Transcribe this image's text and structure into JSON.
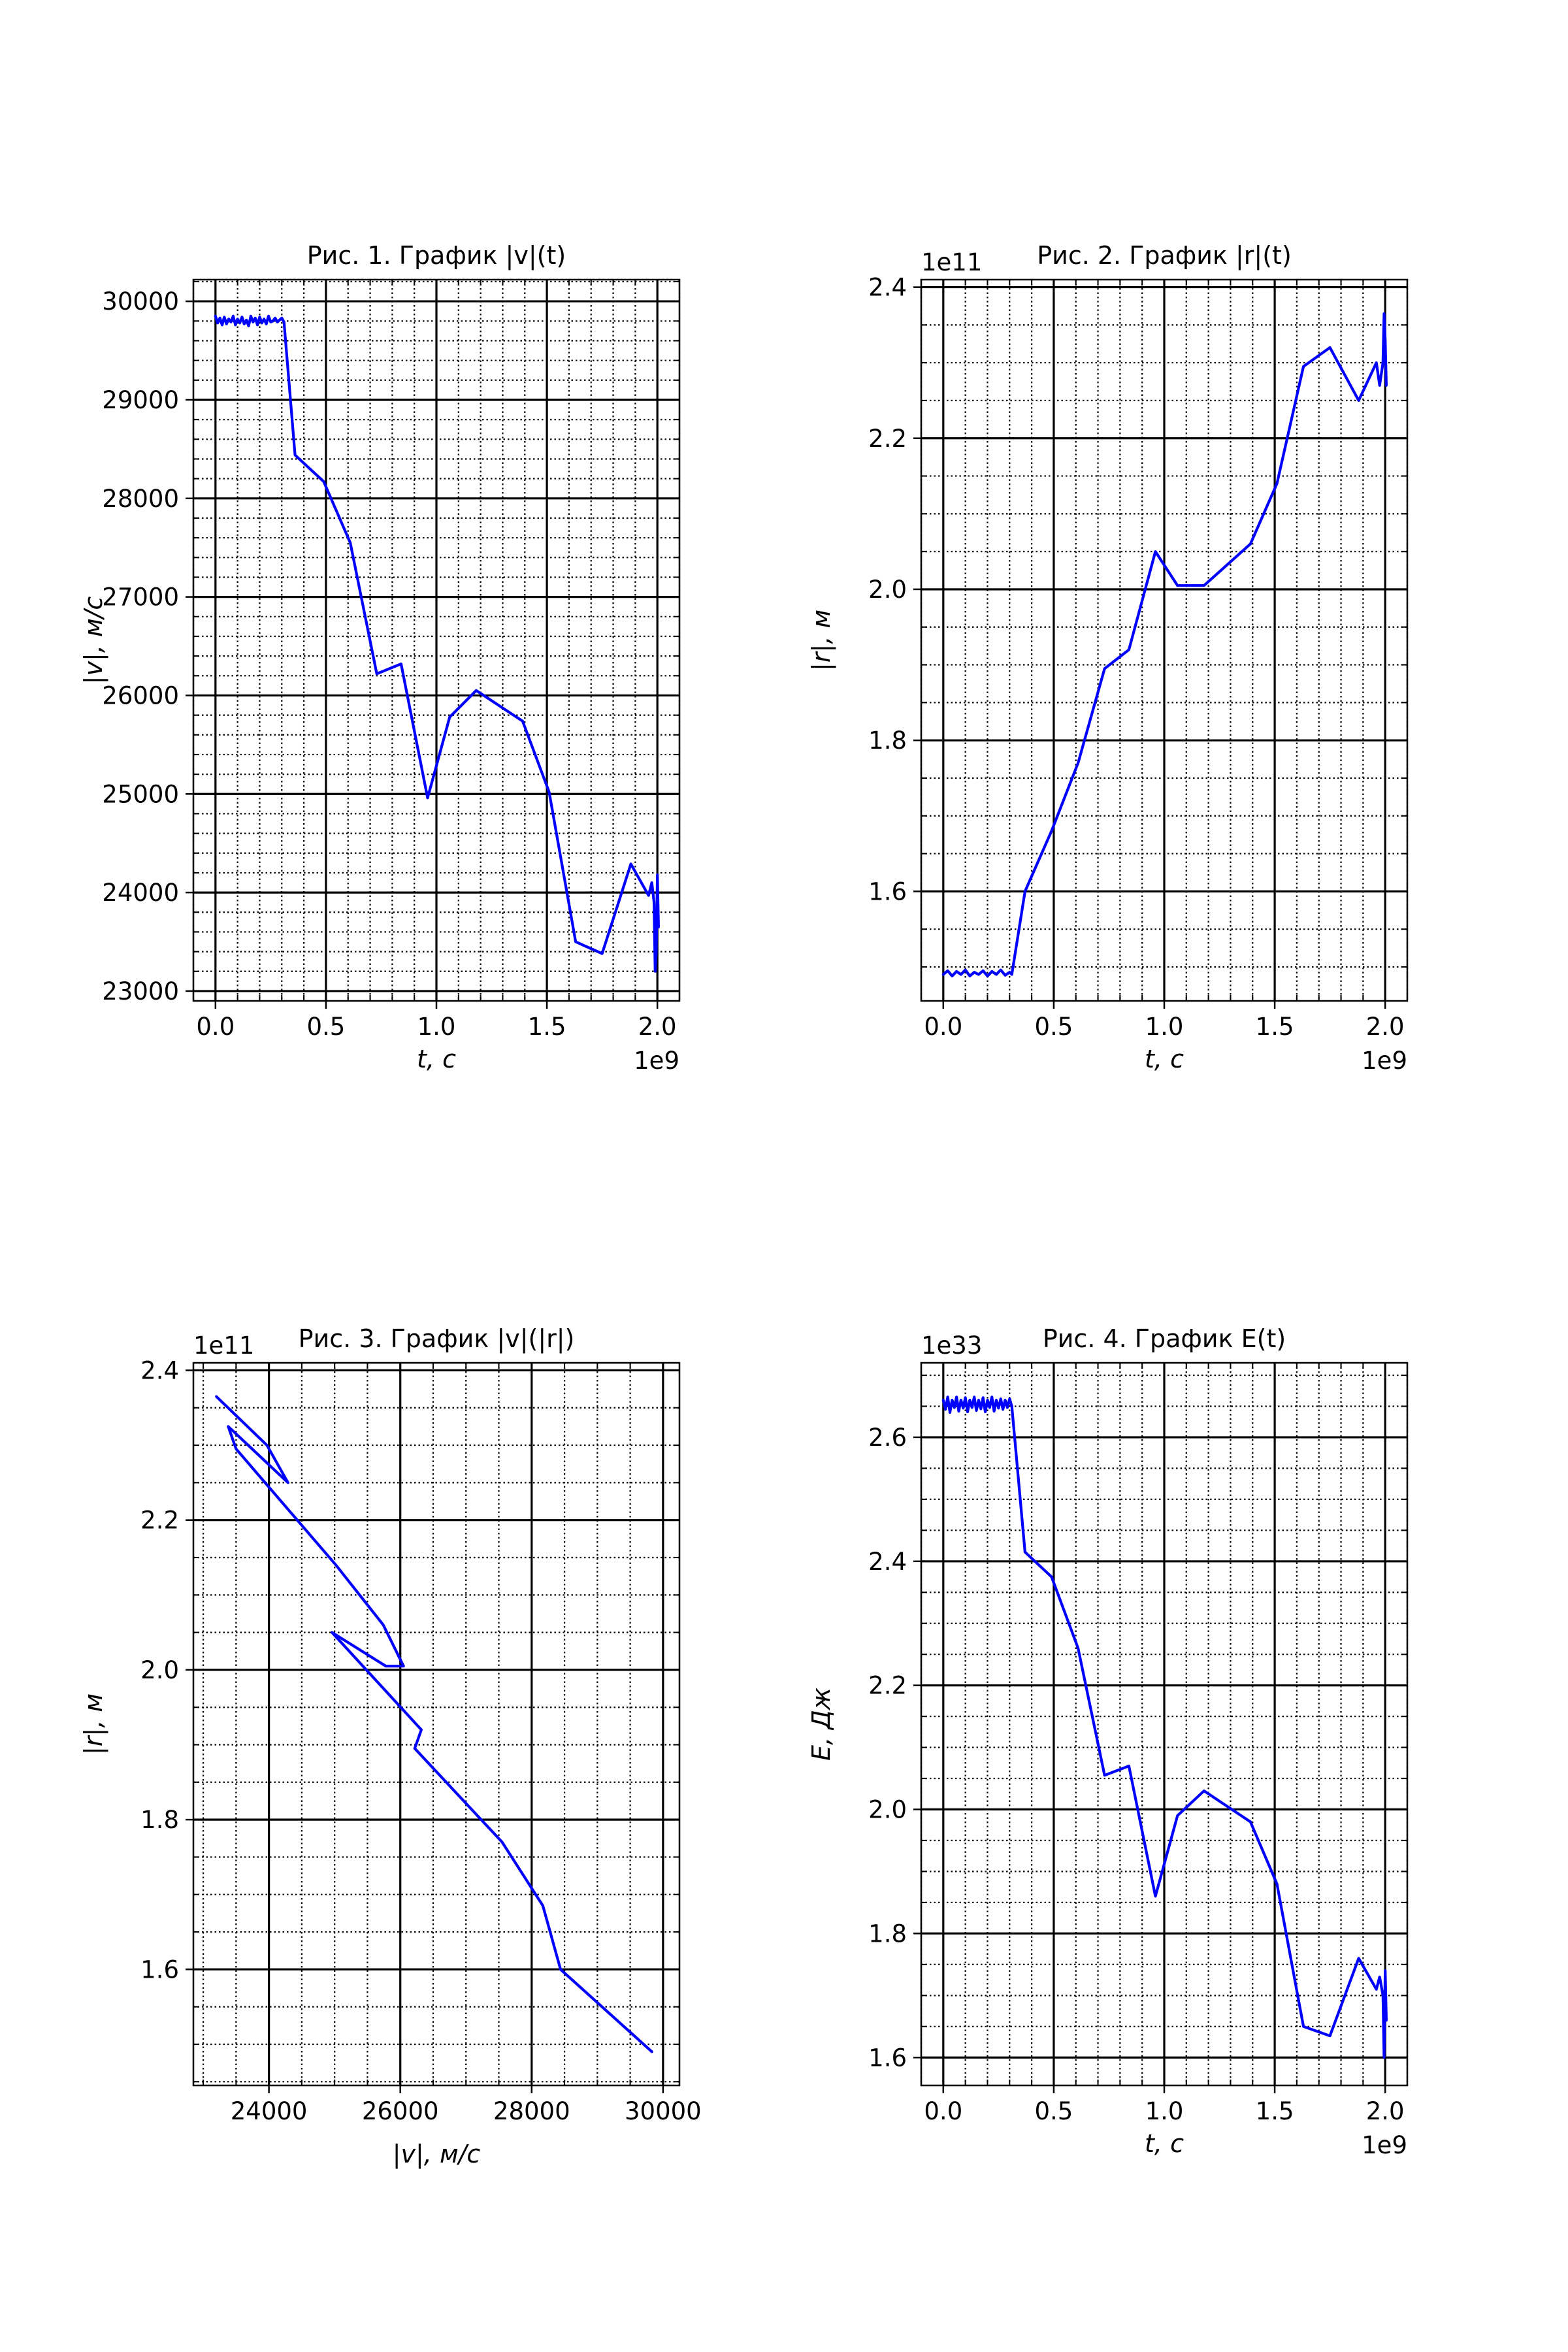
{
  "line_color": "#0000ff",
  "grid_color": "#000000",
  "chart_data": [
    {
      "type": "line",
      "title": "Рис. 1. График |v|(t)",
      "xlabel": "t, c",
      "ylabel": "|v|, м/c",
      "offset_label": "1e9",
      "x_offset": "1e9",
      "y_offset": "",
      "xlim": [
        -0.1,
        2.1
      ],
      "ylim": [
        22900,
        30220
      ],
      "x_ticks": [
        0.0,
        0.5,
        1.0,
        1.5,
        2.0
      ],
      "x_tick_labels": [
        "0.0",
        "0.5",
        "1.0",
        "1.5",
        "2.0"
      ],
      "y_ticks": [
        23000,
        24000,
        25000,
        26000,
        27000,
        28000,
        29000,
        30000
      ],
      "y_tick_labels": [
        "23000",
        "24000",
        "25000",
        "26000",
        "27000",
        "28000",
        "29000",
        "30000"
      ],
      "x_minor": 0.1,
      "y_minor": 200,
      "grid": true,
      "series": [
        {
          "x": [
            0.0,
            0.01,
            0.02,
            0.03,
            0.04,
            0.05,
            0.06,
            0.07,
            0.08,
            0.09,
            0.1,
            0.11,
            0.12,
            0.13,
            0.14,
            0.15,
            0.16,
            0.17,
            0.18,
            0.19,
            0.2,
            0.21,
            0.22,
            0.23,
            0.24,
            0.25,
            0.26,
            0.27,
            0.28,
            0.29,
            0.3,
            0.31,
            0.36,
            0.49,
            0.61,
            0.73,
            0.84,
            0.96,
            1.06,
            1.18,
            1.39,
            1.51,
            1.63,
            1.75,
            1.88,
            1.96,
            1.975,
            1.985,
            1.99,
            1.995,
            2.0,
            2.005
          ],
          "y": [
            29850,
            29780,
            29830,
            29760,
            29840,
            29770,
            29820,
            29790,
            29850,
            29760,
            29820,
            29780,
            29840,
            29770,
            29810,
            29750,
            29850,
            29790,
            29830,
            29760,
            29840,
            29780,
            29820,
            29770,
            29850,
            29790,
            29800,
            29830,
            29790,
            29810,
            29830,
            29790,
            28440,
            28170,
            27550,
            26220,
            26320,
            24960,
            25780,
            26050,
            25740,
            25020,
            23500,
            23380,
            24290,
            23970,
            24100,
            23900,
            23200,
            23400,
            24180,
            23650
          ]
        }
      ]
    },
    {
      "type": "line",
      "title": "Рис. 2. График |r|(t)",
      "xlabel": "t, c",
      "ylabel": "|r|, м",
      "offset_label": "1e11",
      "x_offset": "1e9",
      "y_offset": "1e11",
      "xlim": [
        -0.1,
        2.1
      ],
      "ylim": [
        1.455,
        2.41
      ],
      "x_ticks": [
        0.0,
        0.5,
        1.0,
        1.5,
        2.0
      ],
      "x_tick_labels": [
        "0.0",
        "0.5",
        "1.0",
        "1.5",
        "2.0"
      ],
      "y_ticks": [
        1.6,
        1.8,
        2.0,
        2.2,
        2.4
      ],
      "y_tick_labels": [
        "1.6",
        "1.8",
        "2.0",
        "2.2",
        "2.4"
      ],
      "x_minor": 0.1,
      "y_minor": 0.05,
      "grid": true,
      "series": [
        {
          "x": [
            0.0,
            0.02,
            0.04,
            0.06,
            0.08,
            0.1,
            0.12,
            0.14,
            0.16,
            0.18,
            0.2,
            0.22,
            0.24,
            0.26,
            0.28,
            0.3,
            0.31,
            0.37,
            0.49,
            0.61,
            0.73,
            0.84,
            0.96,
            1.06,
            1.18,
            1.39,
            1.51,
            1.63,
            1.75,
            1.88,
            1.96,
            1.975,
            1.99,
            1.995,
            2.0,
            2.005
          ],
          "y": [
            1.49,
            1.495,
            1.488,
            1.494,
            1.49,
            1.496,
            1.488,
            1.493,
            1.49,
            1.495,
            1.488,
            1.494,
            1.49,
            1.496,
            1.489,
            1.493,
            1.49,
            1.6,
            1.68,
            1.77,
            1.895,
            1.92,
            2.05,
            2.005,
            2.005,
            2.06,
            2.14,
            2.295,
            2.32,
            2.25,
            2.3,
            2.27,
            2.3,
            2.365,
            2.33,
            2.27
          ]
        }
      ]
    },
    {
      "type": "line",
      "title": "Рис. 3. График |v|(|r|)",
      "xlabel": "|v|, м/c",
      "ylabel": "|r|, м",
      "offset_label": "1e11",
      "x_offset": "",
      "y_offset": "1e11",
      "xlim": [
        22850,
        30250
      ],
      "ylim": [
        1.445,
        2.41
      ],
      "x_ticks": [
        24000,
        26000,
        28000,
        30000
      ],
      "x_tick_labels": [
        "24000",
        "26000",
        "28000",
        "30000"
      ],
      "y_ticks": [
        1.6,
        1.8,
        2.0,
        2.2,
        2.4
      ],
      "y_tick_labels": [
        "1.6",
        "1.8",
        "2.0",
        "2.2",
        "2.4"
      ],
      "x_minor": 500,
      "y_minor": 0.05,
      "grid": true,
      "series": [
        {
          "x": [
            29830,
            28440,
            28170,
            27550,
            26220,
            26320,
            24960,
            25780,
            26050,
            25740,
            25020,
            23500,
            23380,
            24290,
            23970,
            23200
          ],
          "y": [
            1.49,
            1.6,
            1.685,
            1.77,
            1.895,
            1.92,
            2.05,
            2.005,
            2.005,
            2.06,
            2.14,
            2.295,
            2.325,
            2.25,
            2.3,
            2.365
          ]
        }
      ]
    },
    {
      "type": "line",
      "title": "Рис. 4. График E(t)",
      "xlabel": "t, c",
      "ylabel": "E, Дж",
      "offset_label": "1e33",
      "x_offset": "1e9",
      "y_offset": "1e33",
      "xlim": [
        -0.1,
        2.1
      ],
      "ylim": [
        1.555,
        2.72
      ],
      "x_ticks": [
        0.0,
        0.5,
        1.0,
        1.5,
        2.0
      ],
      "x_tick_labels": [
        "0.0",
        "0.5",
        "1.0",
        "1.5",
        "2.0"
      ],
      "y_ticks": [
        1.6,
        1.8,
        2.0,
        2.2,
        2.4,
        2.6
      ],
      "y_tick_labels": [
        "1.6",
        "1.8",
        "2.0",
        "2.2",
        "2.4",
        "2.6"
      ],
      "x_minor": 0.1,
      "y_minor": 0.05,
      "grid": true,
      "series": [
        {
          "x": [
            0.0,
            0.01,
            0.02,
            0.03,
            0.04,
            0.05,
            0.06,
            0.07,
            0.08,
            0.09,
            0.1,
            0.11,
            0.12,
            0.13,
            0.14,
            0.15,
            0.16,
            0.17,
            0.18,
            0.19,
            0.2,
            0.21,
            0.22,
            0.23,
            0.24,
            0.25,
            0.26,
            0.27,
            0.28,
            0.29,
            0.3,
            0.31,
            0.37,
            0.49,
            0.61,
            0.73,
            0.84,
            0.96,
            1.06,
            1.18,
            1.39,
            1.51,
            1.63,
            1.75,
            1.88,
            1.96,
            1.975,
            1.99,
            1.995,
            2.0,
            2.005
          ],
          "y": [
            2.66,
            2.645,
            2.665,
            2.64,
            2.66,
            2.648,
            2.665,
            2.642,
            2.66,
            2.647,
            2.664,
            2.641,
            2.66,
            2.648,
            2.665,
            2.643,
            2.66,
            2.646,
            2.664,
            2.641,
            2.66,
            2.648,
            2.665,
            2.642,
            2.66,
            2.647,
            2.662,
            2.645,
            2.66,
            2.648,
            2.662,
            2.65,
            2.415,
            2.375,
            2.26,
            2.055,
            2.07,
            1.86,
            1.99,
            2.03,
            1.98,
            1.88,
            1.65,
            1.635,
            1.76,
            1.71,
            1.73,
            1.7,
            1.6,
            1.74,
            1.66
          ]
        }
      ]
    }
  ]
}
